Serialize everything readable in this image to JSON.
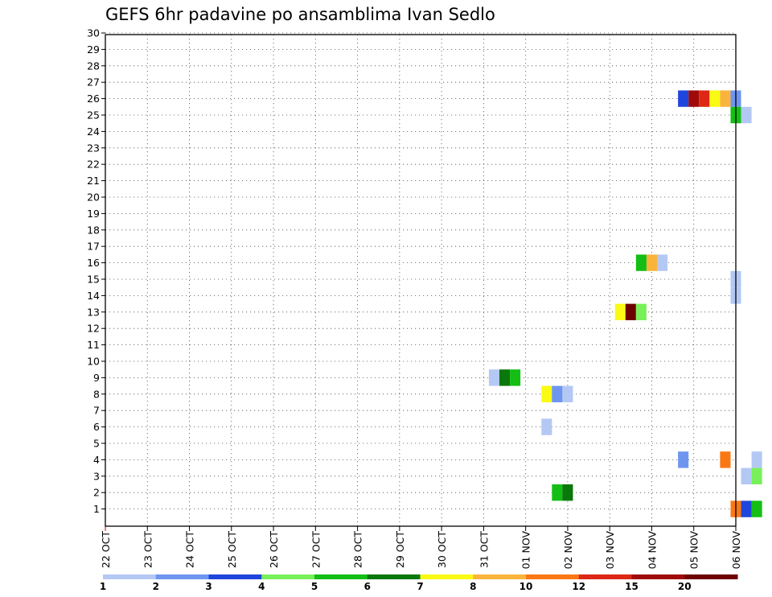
{
  "title": "GEFS 6hr padavine po ansamblima Ivan Sedlo",
  "chart_data": {
    "type": "heatmap",
    "title": "GEFS 6hr padavine po ansamblima Ivan Sedlo",
    "xlabel": "",
    "ylabel": "",
    "x_ticks": [
      "22 OCT",
      "23 OCT",
      "24 OCT",
      "25 OCT",
      "26 OCT",
      "27 OCT",
      "28 OCT",
      "29 OCT",
      "30 OCT",
      "31 OCT",
      "01 NOV",
      "02 NOV",
      "03 NOV",
      "04 NOV",
      "05 NOV",
      "06 NOV"
    ],
    "x_start": "22 OCT 00Z",
    "x_step_hours": 6,
    "xlim_days": [
      0,
      15
    ],
    "y_ticks": [
      1,
      2,
      3,
      4,
      5,
      6,
      7,
      8,
      9,
      10,
      11,
      12,
      13,
      14,
      15,
      16,
      17,
      18,
      19,
      20,
      21,
      22,
      23,
      24,
      25,
      26,
      27,
      28,
      29,
      30
    ],
    "ylim": [
      0,
      30
    ],
    "grid": true,
    "colorbar": {
      "labels": [
        "1",
        "2",
        "3",
        "4",
        "5",
        "6",
        "7",
        "8",
        "10",
        "12",
        "15",
        "20"
      ],
      "colors": [
        "#b4c8f4",
        "#6e96f0",
        "#1e46dc",
        "#78f05a",
        "#14be14",
        "#0a780a",
        "#fafa14",
        "#fab43c",
        "#fa7814",
        "#dc2814",
        "#a00a0a",
        "#6e0000"
      ]
    },
    "cells": [
      {
        "member": 26,
        "day": 13.75,
        "bin": 3
      },
      {
        "member": 26,
        "day": 14.0,
        "bin": 11
      },
      {
        "member": 26,
        "day": 14.25,
        "bin": 10
      },
      {
        "member": 26,
        "day": 14.5,
        "bin": 7
      },
      {
        "member": 26,
        "day": 14.75,
        "bin": 8
      },
      {
        "member": 26,
        "day": 15.0,
        "bin": 2
      },
      {
        "member": 25,
        "day": 15.0,
        "bin": 5
      },
      {
        "member": 25,
        "day": 15.25,
        "bin": 1
      },
      {
        "member": 16,
        "day": 12.75,
        "bin": 5
      },
      {
        "member": 16,
        "day": 13.0,
        "bin": 8
      },
      {
        "member": 16,
        "day": 13.25,
        "bin": 1
      },
      {
        "member": 15,
        "day": 15.0,
        "bin": 1
      },
      {
        "member": 14,
        "day": 15.0,
        "bin": 1
      },
      {
        "member": 13,
        "day": 12.25,
        "bin": 7
      },
      {
        "member": 13,
        "day": 12.5,
        "bin": 12
      },
      {
        "member": 13,
        "day": 12.75,
        "bin": 4
      },
      {
        "member": 9,
        "day": 9.25,
        "bin": 1
      },
      {
        "member": 9,
        "day": 9.5,
        "bin": 6
      },
      {
        "member": 9,
        "day": 9.75,
        "bin": 5
      },
      {
        "member": 8,
        "day": 10.5,
        "bin": 7
      },
      {
        "member": 8,
        "day": 10.75,
        "bin": 2
      },
      {
        "member": 8,
        "day": 11.0,
        "bin": 1
      },
      {
        "member": 6,
        "day": 10.5,
        "bin": 1
      },
      {
        "member": 4,
        "day": 13.75,
        "bin": 2
      },
      {
        "member": 4,
        "day": 14.75,
        "bin": 9
      },
      {
        "member": 4,
        "day": 15.5,
        "bin": 1
      },
      {
        "member": 3,
        "day": 15.25,
        "bin": 1
      },
      {
        "member": 3,
        "day": 15.5,
        "bin": 4
      },
      {
        "member": 2,
        "day": 10.75,
        "bin": 5
      },
      {
        "member": 2,
        "day": 11.0,
        "bin": 6
      },
      {
        "member": 1,
        "day": 15.0,
        "bin": 9
      },
      {
        "member": 1,
        "day": 15.25,
        "bin": 3
      },
      {
        "member": 1,
        "day": 15.5,
        "bin": 5
      }
    ]
  }
}
